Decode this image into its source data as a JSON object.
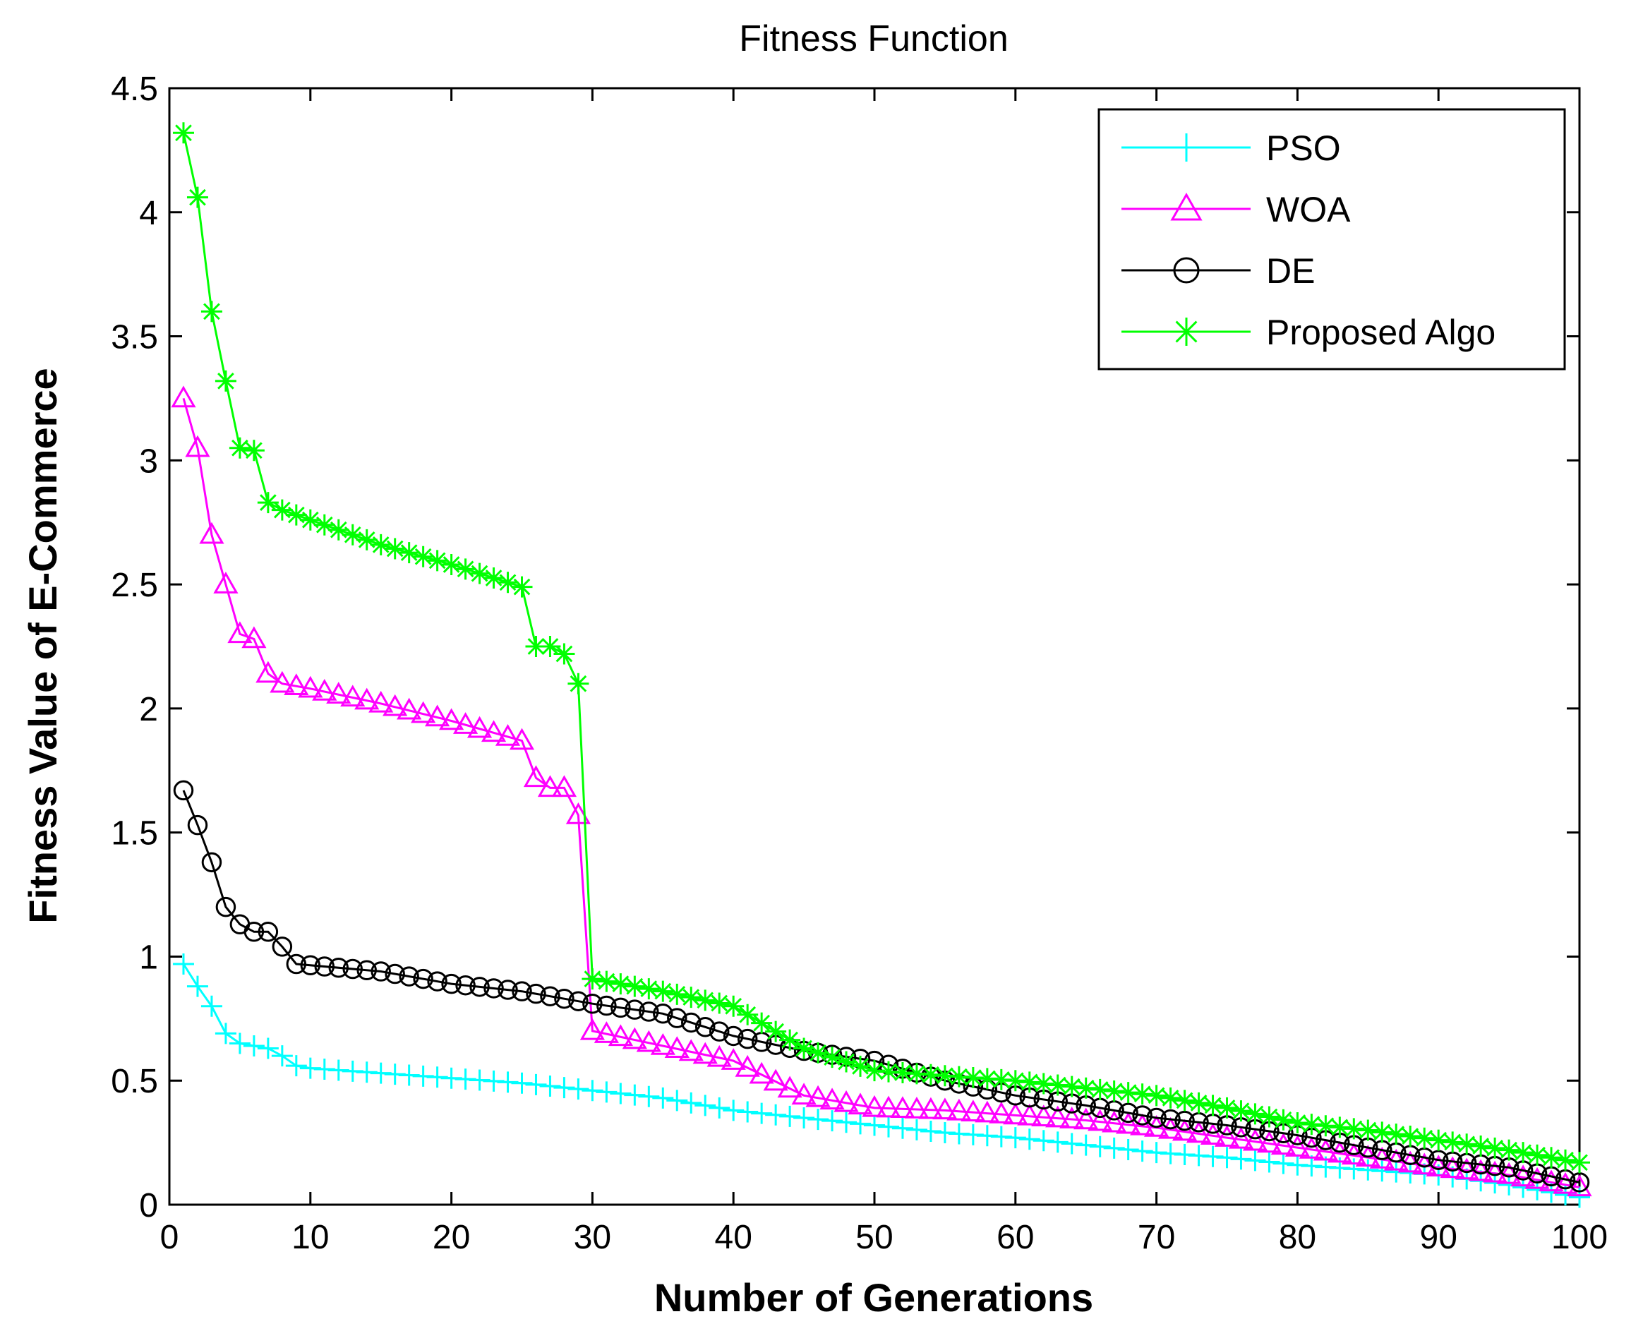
{
  "chart_data": {
    "type": "line",
    "title": "Fitness Function",
    "xlabel": "Number of Generations",
    "ylabel": "Fitness Value of E-Commerce",
    "xlim": [
      0,
      100
    ],
    "ylim": [
      0,
      4.5
    ],
    "xticks": [
      0,
      10,
      20,
      30,
      40,
      50,
      60,
      70,
      80,
      90,
      100
    ],
    "xtick_labels": [
      "0",
      "10",
      "20",
      "30",
      "40",
      "50",
      "60",
      "70",
      "80",
      "90",
      "100"
    ],
    "yticks": [
      0,
      0.5,
      1,
      1.5,
      2,
      2.5,
      3,
      3.5,
      4,
      4.5
    ],
    "ytick_labels": [
      "0",
      "0.5",
      "1",
      "1.5",
      "2",
      "2.5",
      "3",
      "3.5",
      "4",
      "4.5"
    ],
    "legend_position": "top-right",
    "series": [
      {
        "name": "PSO",
        "color": "#00ffff",
        "marker": "plus",
        "points": [
          [
            1,
            0.97
          ],
          [
            2,
            0.88
          ],
          [
            3,
            0.8
          ],
          [
            4,
            0.69
          ],
          [
            5,
            0.65
          ],
          [
            6,
            0.64
          ],
          [
            7,
            0.63
          ],
          [
            8,
            0.6
          ],
          [
            9,
            0.56
          ],
          [
            10,
            0.55
          ],
          [
            20,
            0.51
          ],
          [
            25,
            0.49
          ],
          [
            30,
            0.46
          ],
          [
            35,
            0.43
          ],
          [
            40,
            0.38
          ],
          [
            45,
            0.35
          ],
          [
            50,
            0.32
          ],
          [
            55,
            0.29
          ],
          [
            60,
            0.27
          ],
          [
            65,
            0.24
          ],
          [
            70,
            0.21
          ],
          [
            75,
            0.19
          ],
          [
            80,
            0.16
          ],
          [
            85,
            0.14
          ],
          [
            90,
            0.12
          ],
          [
            95,
            0.08
          ],
          [
            99,
            0.04
          ],
          [
            100,
            0.03
          ]
        ]
      },
      {
        "name": "WOA",
        "color": "#ff00ff",
        "marker": "triangle",
        "points": [
          [
            1,
            3.25
          ],
          [
            2,
            3.05
          ],
          [
            3,
            2.7
          ],
          [
            4,
            2.5
          ],
          [
            5,
            2.3
          ],
          [
            6,
            2.28
          ],
          [
            7,
            2.14
          ],
          [
            8,
            2.1
          ],
          [
            10,
            2.08
          ],
          [
            15,
            2.02
          ],
          [
            20,
            1.95
          ],
          [
            25,
            1.87
          ],
          [
            26,
            1.72
          ],
          [
            27,
            1.68
          ],
          [
            28,
            1.68
          ],
          [
            29,
            1.57
          ],
          [
            30,
            0.7
          ],
          [
            35,
            0.64
          ],
          [
            40,
            0.58
          ],
          [
            45,
            0.44
          ],
          [
            50,
            0.39
          ],
          [
            55,
            0.38
          ],
          [
            60,
            0.36
          ],
          [
            65,
            0.34
          ],
          [
            70,
            0.31
          ],
          [
            75,
            0.27
          ],
          [
            80,
            0.23
          ],
          [
            85,
            0.19
          ],
          [
            90,
            0.15
          ],
          [
            95,
            0.12
          ],
          [
            99,
            0.08
          ],
          [
            100,
            0.07
          ]
        ]
      },
      {
        "name": "DE",
        "color": "#000000",
        "marker": "circle",
        "points": [
          [
            1,
            1.67
          ],
          [
            2,
            1.53
          ],
          [
            3,
            1.38
          ],
          [
            4,
            1.2
          ],
          [
            5,
            1.13
          ],
          [
            6,
            1.1
          ],
          [
            7,
            1.1
          ],
          [
            8,
            1.04
          ],
          [
            9,
            0.97
          ],
          [
            15,
            0.94
          ],
          [
            20,
            0.89
          ],
          [
            25,
            0.86
          ],
          [
            30,
            0.81
          ],
          [
            35,
            0.77
          ],
          [
            40,
            0.68
          ],
          [
            45,
            0.62
          ],
          [
            50,
            0.58
          ],
          [
            55,
            0.5
          ],
          [
            60,
            0.44
          ],
          [
            65,
            0.4
          ],
          [
            70,
            0.35
          ],
          [
            75,
            0.32
          ],
          [
            80,
            0.28
          ],
          [
            85,
            0.23
          ],
          [
            90,
            0.18
          ],
          [
            95,
            0.15
          ],
          [
            100,
            0.09
          ]
        ]
      },
      {
        "name": "Proposed Algo",
        "color": "#00ff00",
        "marker": "star",
        "points": [
          [
            1,
            4.32
          ],
          [
            2,
            4.06
          ],
          [
            3,
            3.6
          ],
          [
            4,
            3.32
          ],
          [
            5,
            3.05
          ],
          [
            6,
            3.04
          ],
          [
            7,
            2.83
          ],
          [
            8,
            2.8
          ],
          [
            10,
            2.76
          ],
          [
            15,
            2.66
          ],
          [
            20,
            2.58
          ],
          [
            25,
            2.49
          ],
          [
            26,
            2.25
          ],
          [
            27,
            2.25
          ],
          [
            28,
            2.22
          ],
          [
            29,
            2.1
          ],
          [
            30,
            0.91
          ],
          [
            35,
            0.86
          ],
          [
            40,
            0.8
          ],
          [
            45,
            0.63
          ],
          [
            50,
            0.54
          ],
          [
            55,
            0.52
          ],
          [
            60,
            0.5
          ],
          [
            65,
            0.47
          ],
          [
            70,
            0.44
          ],
          [
            75,
            0.39
          ],
          [
            80,
            0.33
          ],
          [
            85,
            0.3
          ],
          [
            90,
            0.26
          ],
          [
            95,
            0.22
          ],
          [
            100,
            0.17
          ]
        ]
      }
    ]
  }
}
